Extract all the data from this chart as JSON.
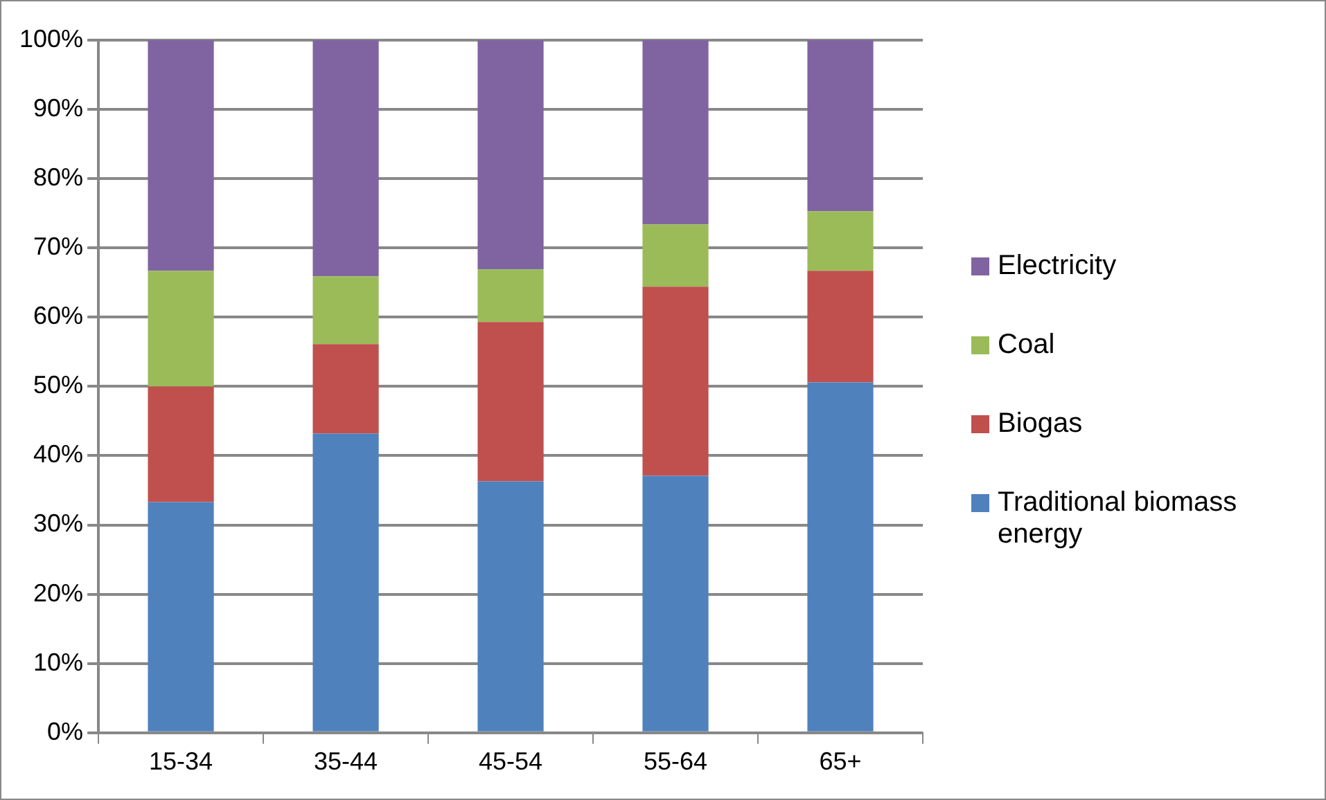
{
  "chart_data": {
    "type": "bar",
    "stacked": true,
    "categories": [
      "15-34",
      "35-44",
      "45-54",
      "55-64",
      "65+"
    ],
    "series": [
      {
        "name": "Traditional biomass energy",
        "color": "#4f81bd",
        "values": [
          33.3,
          43.2,
          36.3,
          37.1,
          50.6
        ]
      },
      {
        "name": "Biogas",
        "color": "#c0504d",
        "values": [
          16.7,
          12.9,
          23.0,
          27.3,
          16.1
        ]
      },
      {
        "name": "Coal",
        "color": "#9bbb59",
        "values": [
          16.7,
          9.8,
          7.6,
          9.0,
          8.6
        ]
      },
      {
        "name": "Electricity",
        "color": "#8064a2",
        "values": [
          33.3,
          34.1,
          33.1,
          26.6,
          24.7
        ]
      }
    ],
    "ylim": [
      0,
      100
    ],
    "yticks": [
      {
        "value": 0,
        "label": "0%"
      },
      {
        "value": 10,
        "label": "10%"
      },
      {
        "value": 20,
        "label": "20%"
      },
      {
        "value": 30,
        "label": "30%"
      },
      {
        "value": 40,
        "label": "40%"
      },
      {
        "value": 50,
        "label": "50%"
      },
      {
        "value": 60,
        "label": "60%"
      },
      {
        "value": 70,
        "label": "70%"
      },
      {
        "value": 80,
        "label": "80%"
      },
      {
        "value": 90,
        "label": "90%"
      },
      {
        "value": 100,
        "label": "100%"
      }
    ],
    "grid": "y",
    "legend": "right"
  }
}
